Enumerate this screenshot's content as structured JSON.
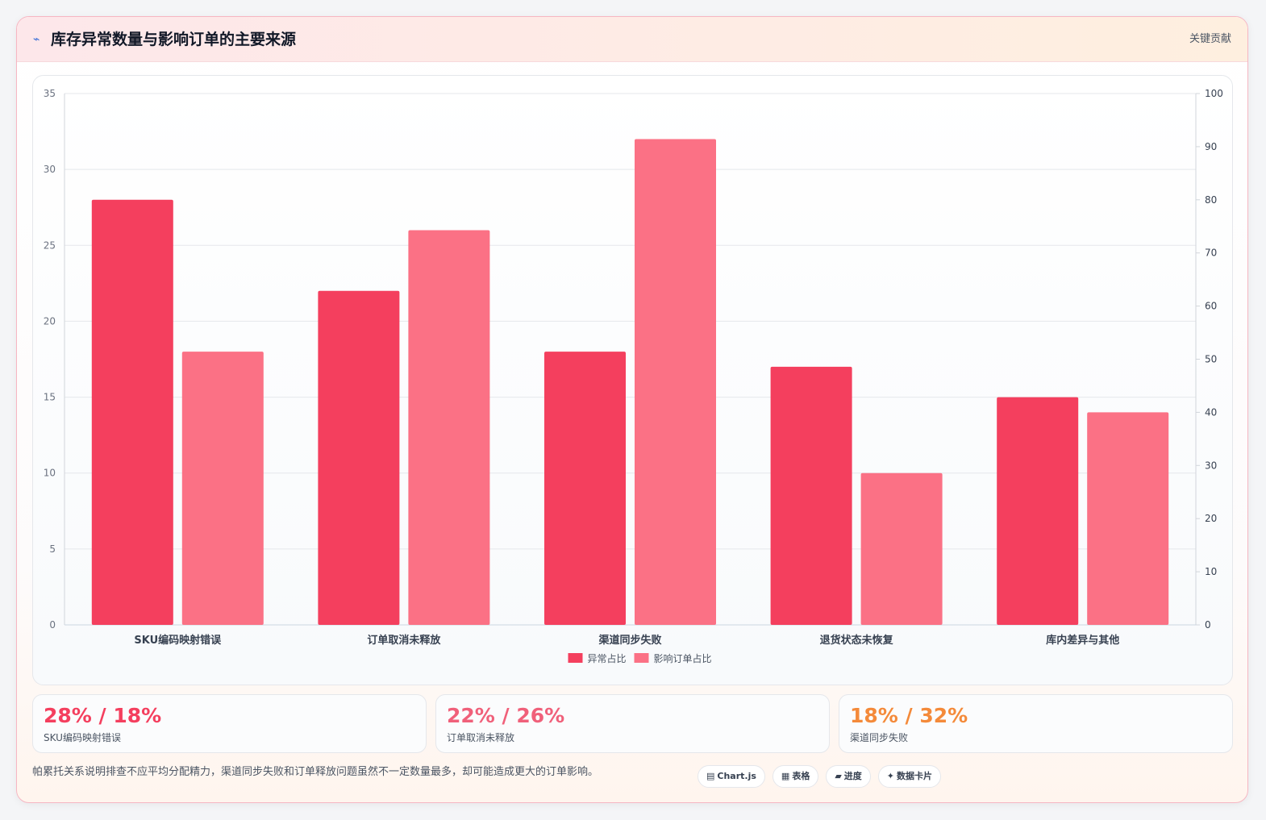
{
  "header": {
    "icon": "pulse-icon",
    "title": "库存异常数量与影响订单的主要来源",
    "right_label": "关键贡献"
  },
  "chart_data": {
    "type": "bar",
    "title": "",
    "categories": [
      "SKU编码映射错误",
      "订单取消未释放",
      "渠道同步失败",
      "退货状态未恢复",
      "库内差异与其他"
    ],
    "series": [
      {
        "name": "异常占比",
        "axis": "left",
        "color": "#f43f5e",
        "values": [
          28,
          22,
          18,
          17,
          15
        ]
      },
      {
        "name": "影响订单占比",
        "axis": "left",
        "color": "#fb7185",
        "values": [
          18,
          26,
          32,
          10,
          14
        ]
      }
    ],
    "y_left": {
      "min": 0,
      "max": 35,
      "ticks": [
        0,
        5,
        10,
        15,
        20,
        25,
        30,
        35
      ]
    },
    "y_right": {
      "min": 0,
      "max": 100,
      "ticks": [
        0,
        10,
        20,
        30,
        40,
        50,
        60,
        70,
        80,
        90,
        100
      ]
    },
    "grid": true,
    "legend": "bottom-center"
  },
  "stats": [
    {
      "value": "28% / 18%",
      "label": "SKU编码映射错误",
      "color": "#f43f5e"
    },
    {
      "value": "22% / 26%",
      "label": "订单取消未释放",
      "color": "#f0607a"
    },
    {
      "value": "18% / 32%",
      "label": "渠道同步失败",
      "color": "#f48a3a"
    }
  ],
  "footnote": "帕累托关系说明排查不应平均分配精力，渠道同步失败和订单释放问题虽然不一定数量最多，却可能造成更大的订单影响。",
  "tags": [
    {
      "glyph": "▤",
      "label": "Chart.js"
    },
    {
      "glyph": "▦",
      "label": "表格"
    },
    {
      "glyph": "▰",
      "label": "进度"
    },
    {
      "glyph": "✦",
      "label": "数据卡片"
    }
  ]
}
